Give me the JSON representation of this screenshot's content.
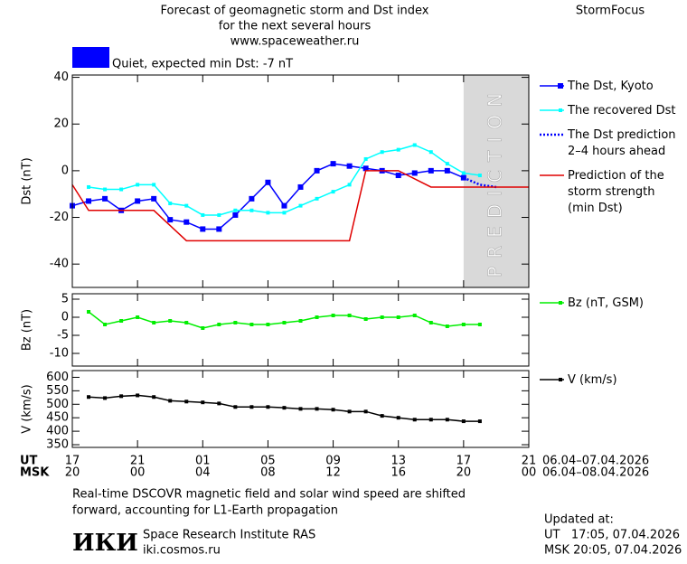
{
  "header": {
    "title_lines": [
      "Forecast of geomagnetic storm and Dst index",
      "for the next several hours",
      "www.spaceweather.ru"
    ],
    "brand": "StormFocus"
  },
  "status": {
    "text": "Quiet, expected min Dst: -7 nT",
    "color": "#0000ff"
  },
  "time_axis": {
    "xlim": [
      17,
      45
    ],
    "xticks": [
      17,
      21,
      {
        "value": 25,
        "label": "01"
      },
      {
        "value": 29,
        "label": "05"
      },
      {
        "value": 33,
        "label": "09"
      },
      {
        "value": 37,
        "label": "13"
      },
      {
        "value": 41,
        "label": "17"
      },
      {
        "value": 45,
        "label": "21"
      }
    ],
    "msk_ticks": [
      "20",
      "00",
      "04",
      "08",
      "12",
      "16",
      "20",
      "00"
    ],
    "ut_label": "UT",
    "msk_label": "MSK",
    "ut_dates": "06.04–07.04.2026",
    "msk_dates": "06.04–08.04.2026"
  },
  "chart_data": [
    {
      "type": "line",
      "y_label": "Dst (nT)",
      "ylim": [
        -50,
        41
      ],
      "yticks": [
        40,
        20,
        0,
        -20,
        -40
      ],
      "prediction_region": {
        "start": 41,
        "label": "PREDICTION",
        "color": "#d9d9d9"
      },
      "series": [
        {
          "name": "The Dst, Kyoto",
          "color": "#0000ff",
          "marker": "square",
          "x": [
            17,
            18,
            19,
            20,
            21,
            22,
            23,
            24,
            25,
            26,
            27,
            28,
            29,
            30,
            31,
            32,
            33,
            34,
            35,
            36,
            37,
            38,
            39,
            40,
            41
          ],
          "values": [
            -15,
            -13,
            -12,
            -17,
            -13,
            -12,
            -21,
            -22,
            -25,
            -25,
            -19,
            -12,
            -5,
            -15,
            -7,
            0,
            3,
            2,
            1,
            0,
            -2,
            -1,
            0,
            0,
            -3
          ]
        },
        {
          "name": "The recovered Dst",
          "color": "#00ffff",
          "marker": "small-square",
          "x": [
            18,
            19,
            20,
            21,
            22,
            23,
            24,
            25,
            26,
            27,
            28,
            29,
            30,
            31,
            32,
            33,
            34,
            35,
            36,
            37,
            38,
            39,
            40,
            41,
            42
          ],
          "values": [
            -7,
            -8,
            -8,
            -6,
            -6,
            -14,
            -15,
            -19,
            -19,
            -17,
            -17,
            -18,
            -18,
            -15,
            -12,
            -9,
            -6,
            5,
            8,
            9,
            11,
            8,
            3,
            -1,
            -2
          ]
        },
        {
          "name": "The Dst prediction\n2–4 hours ahead",
          "color": "#0000ff",
          "dash": "dotted",
          "x": [
            41,
            42,
            43
          ],
          "values": [
            -3,
            -6,
            -7
          ]
        },
        {
          "name": "Prediction of the\nstorm strength\n(min Dst)",
          "color": "#e00000",
          "x": [
            17,
            18,
            22,
            24,
            34,
            35,
            37,
            39,
            45
          ],
          "values": [
            -6,
            -17,
            -17,
            -30,
            -30,
            0,
            0,
            -7,
            -7
          ]
        }
      ]
    },
    {
      "type": "line",
      "y_label": "Bz (nT)",
      "ylim": [
        -13.5,
        6.5
      ],
      "yticks": [
        5,
        0,
        -5,
        -10
      ],
      "series": [
        {
          "name": "Bz (nT, GSM)",
          "color": "#00ee00",
          "marker": "small-square",
          "x": [
            18,
            19,
            20,
            21,
            22,
            23,
            24,
            25,
            26,
            27,
            28,
            29,
            30,
            31,
            32,
            33,
            34,
            35,
            36,
            37,
            38,
            39,
            40,
            41,
            42
          ],
          "values": [
            1.5,
            -2,
            -1,
            0,
            -1.5,
            -1,
            -1.5,
            -3,
            -2,
            -1.5,
            -2,
            -2,
            -1.5,
            -1,
            0,
            0.5,
            0.5,
            -0.5,
            0,
            0,
            0.5,
            -1.5,
            -2.5,
            -2,
            -2
          ]
        }
      ]
    },
    {
      "type": "line",
      "y_label": "V (km/s)",
      "ylim": [
        340,
        625
      ],
      "yticks": [
        600,
        550,
        500,
        450,
        400,
        350
      ],
      "series": [
        {
          "name": "V (km/s)",
          "color": "#000000",
          "marker": "small-square",
          "x": [
            18,
            19,
            20,
            21,
            22,
            23,
            24,
            25,
            26,
            27,
            28,
            29,
            30,
            31,
            32,
            33,
            34,
            35,
            36,
            37,
            38,
            39,
            40,
            41,
            42
          ],
          "values": [
            527,
            523,
            530,
            533,
            527,
            513,
            510,
            507,
            503,
            490,
            490,
            490,
            487,
            483,
            483,
            480,
            473,
            473,
            457,
            450,
            443,
            443,
            443,
            437,
            437
          ]
        }
      ]
    }
  ],
  "footer": {
    "note_lines": [
      "Real-time DSCOVR magnetic field and solar wind speed are shifted",
      "forward, accounting for L1-Earth propagation"
    ],
    "logo": "ИКИ",
    "institute": "Space Research Institute RAS",
    "site": "iki.cosmos.ru",
    "updated_lines": [
      "Updated at:",
      "UT   17:05, 07.04.2026",
      "MSK 20:05, 07.04.2026"
    ]
  }
}
